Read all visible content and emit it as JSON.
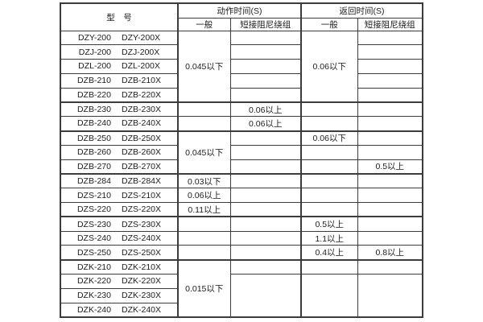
{
  "table": {
    "header": {
      "model": "型　号",
      "action_time": "动作时间(S)",
      "return_time": "返回时间(S)",
      "general_1": "一般",
      "damped_1": "短接阻尼绕组",
      "general_2": "一般",
      "damped_2": "短接阻尼绕组"
    },
    "rows": [
      {
        "models": [
          "DZY-200",
          "DZY-200X"
        ],
        "group_start": false,
        "cells": {
          "action_general": {
            "text": "0.045以下",
            "rowspan": 5
          },
          "action_damped": {
            "text": ""
          },
          "return_general": {
            "text": "0.06以下",
            "rowspan": 5
          },
          "return_damped": {
            "text": ""
          }
        }
      },
      {
        "models": [
          "DZJ-200",
          "DZJ-200X"
        ],
        "group_start": false,
        "cells": {
          "action_general": null,
          "action_damped": {
            "text": ""
          },
          "return_general": null,
          "return_damped": {
            "text": ""
          }
        }
      },
      {
        "models": [
          "DZL-200",
          "DZL-200X"
        ],
        "group_start": false,
        "cells": {
          "action_general": null,
          "action_damped": {
            "text": ""
          },
          "return_general": null,
          "return_damped": {
            "text": ""
          }
        }
      },
      {
        "models": [
          "DZB-210",
          "DZB-210X"
        ],
        "group_start": false,
        "cells": {
          "action_general": null,
          "action_damped": {
            "text": ""
          },
          "return_general": null,
          "return_damped": {
            "text": ""
          }
        }
      },
      {
        "models": [
          "DZB-220",
          "DZB-220X"
        ],
        "group_start": false,
        "cells": {
          "action_general": null,
          "action_damped": {
            "text": ""
          },
          "return_general": null,
          "return_damped": {
            "text": ""
          }
        }
      },
      {
        "models": [
          "DZB-230",
          "DZB-230X"
        ],
        "group_start": true,
        "cells": {
          "action_general": {
            "text": ""
          },
          "action_damped": {
            "text": "0.06以上"
          },
          "return_general": {
            "text": ""
          },
          "return_damped": {
            "text": ""
          }
        }
      },
      {
        "models": [
          "DZB-240",
          "DZB-240X"
        ],
        "group_start": false,
        "cells": {
          "action_general": {
            "text": ""
          },
          "action_damped": {
            "text": "0.06以上"
          },
          "return_general": {
            "text": ""
          },
          "return_damped": {
            "text": ""
          }
        }
      },
      {
        "models": [
          "DZB-250",
          "DZB-250X"
        ],
        "group_start": true,
        "cells": {
          "action_general": {
            "text": "0.045以下",
            "rowspan": 3,
            "valign": "top"
          },
          "action_damped": {
            "text": ""
          },
          "return_general": {
            "text": "0.06以下"
          },
          "return_damped": {
            "text": ""
          }
        }
      },
      {
        "models": [
          "DZB-260",
          "DZB-260X"
        ],
        "group_start": false,
        "cells": {
          "action_general": null,
          "action_damped": {
            "text": ""
          },
          "return_general": {
            "text": ""
          },
          "return_damped": {
            "text": ""
          }
        }
      },
      {
        "models": [
          "DZB-270",
          "DZB-270X"
        ],
        "group_start": false,
        "cells": {
          "action_general": null,
          "action_damped": {
            "text": ""
          },
          "return_general": {
            "text": ""
          },
          "return_damped": {
            "text": "0.5以上"
          }
        }
      },
      {
        "models": [
          "DZB-284",
          "DZB-284X"
        ],
        "group_start": true,
        "cells": {
          "action_general": {
            "text": "0.03以下"
          },
          "action_damped": {
            "text": ""
          },
          "return_general": {
            "text": ""
          },
          "return_damped": {
            "text": ""
          }
        }
      },
      {
        "models": [
          "DZS-210",
          "DZS-210X"
        ],
        "group_start": false,
        "cells": {
          "action_general": {
            "text": "0.06以上"
          },
          "action_damped": {
            "text": ""
          },
          "return_general": {
            "text": ""
          },
          "return_damped": {
            "text": ""
          }
        }
      },
      {
        "models": [
          "DZS-220",
          "DZS-220X"
        ],
        "group_start": false,
        "cells": {
          "action_general": {
            "text": "0.11以上"
          },
          "action_damped": {
            "text": ""
          },
          "return_general": {
            "text": ""
          },
          "return_damped": {
            "text": ""
          }
        }
      },
      {
        "models": [
          "DZS-230",
          "DZS-230X"
        ],
        "group_start": true,
        "cells": {
          "action_general": {
            "text": ""
          },
          "action_damped": {
            "text": ""
          },
          "return_general": {
            "text": "0.5以上"
          },
          "return_damped": {
            "text": ""
          }
        }
      },
      {
        "models": [
          "DZS-240",
          "DZS-240X"
        ],
        "group_start": false,
        "cells": {
          "action_general": {
            "text": ""
          },
          "action_damped": {
            "text": ""
          },
          "return_general": {
            "text": "1.1以上"
          },
          "return_damped": {
            "text": ""
          }
        }
      },
      {
        "models": [
          "DZS-250",
          "DZS-250X"
        ],
        "group_start": false,
        "cells": {
          "action_general": {
            "text": ""
          },
          "action_damped": {
            "text": ""
          },
          "return_general": {
            "text": "0.4以上"
          },
          "return_damped": {
            "text": "0.8以上"
          }
        }
      },
      {
        "models": [
          "DZK-210",
          "DZK-210X"
        ],
        "group_start": true,
        "cells": {
          "action_general": {
            "text": "0.015以下",
            "rowspan": 4
          },
          "action_damped": {
            "text": ""
          },
          "return_general": {
            "text": ""
          },
          "return_damped": {
            "text": ""
          }
        }
      },
      {
        "models": [
          "DZK-220",
          "DZK-220X"
        ],
        "group_start": false,
        "cells": {
          "action_general": null,
          "action_damped": {
            "text": "",
            "rowspan": 3
          },
          "return_general": {
            "text": "",
            "rowspan": 3
          },
          "return_damped": {
            "text": "",
            "rowspan": 3
          }
        }
      },
      {
        "models": [
          "DZK-230",
          "DZK-230X"
        ],
        "group_start": false,
        "cells": {
          "action_general": null,
          "action_damped": null,
          "return_general": null,
          "return_damped": null
        }
      },
      {
        "models": [
          "DZK-240",
          "DZK-240X"
        ],
        "group_start": false,
        "cells": {
          "action_general": null,
          "action_damped": null,
          "return_general": null,
          "return_damped": null
        }
      }
    ]
  }
}
